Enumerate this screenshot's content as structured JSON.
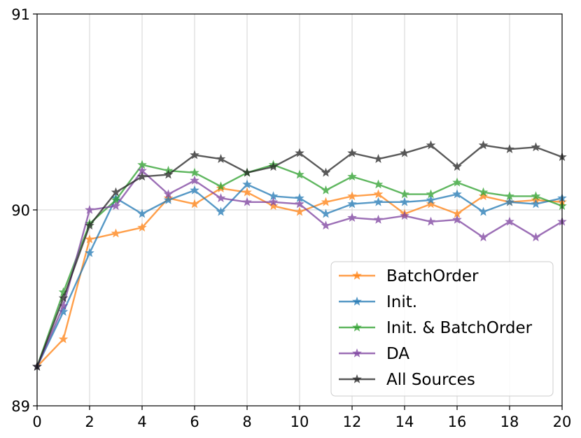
{
  "chart_data": {
    "type": "line",
    "title": "",
    "xlabel": "",
    "ylabel": "",
    "xlim": [
      0,
      20
    ],
    "ylim": [
      89,
      91
    ],
    "x_ticks": [
      0,
      2,
      4,
      6,
      8,
      10,
      12,
      14,
      16,
      18,
      20
    ],
    "y_ticks": [
      89,
      90,
      91
    ],
    "grid": "vertical",
    "legend_position": "lower-right",
    "marker": "star",
    "x": [
      0,
      1,
      2,
      3,
      4,
      5,
      6,
      7,
      8,
      9,
      10,
      11,
      12,
      13,
      14,
      15,
      16,
      17,
      18,
      19,
      20
    ],
    "series": [
      {
        "name": "BatchOrder",
        "color": "#ff7f0e",
        "values": [
          89.2,
          89.34,
          89.85,
          89.88,
          89.91,
          90.06,
          90.03,
          90.11,
          90.09,
          90.02,
          89.99,
          90.04,
          90.07,
          90.08,
          89.98,
          90.03,
          89.98,
          90.07,
          90.04,
          90.05,
          90.04
        ]
      },
      {
        "name": "Init.",
        "color": "#1f77b4",
        "values": [
          89.2,
          89.48,
          89.78,
          90.06,
          89.98,
          90.05,
          90.1,
          89.99,
          90.13,
          90.07,
          90.06,
          89.98,
          90.03,
          90.04,
          90.04,
          90.05,
          90.08,
          89.99,
          90.04,
          90.03,
          90.06
        ]
      },
      {
        "name": "Init. & BatchOrder",
        "color": "#2ca02c",
        "values": [
          89.2,
          89.58,
          89.93,
          90.05,
          90.23,
          90.2,
          90.19,
          90.12,
          90.19,
          90.23,
          90.18,
          90.1,
          90.17,
          90.13,
          90.08,
          90.08,
          90.14,
          90.09,
          90.07,
          90.07,
          90.02
        ]
      },
      {
        "name": "DA",
        "color": "#7b3f9e",
        "values": [
          89.2,
          89.51,
          90.0,
          90.02,
          90.2,
          90.08,
          90.15,
          90.06,
          90.04,
          90.04,
          90.03,
          89.92,
          89.96,
          89.95,
          89.97,
          89.94,
          89.95,
          89.86,
          89.94,
          89.86,
          89.94
        ]
      },
      {
        "name": "All Sources",
        "color": "#222222",
        "values": [
          89.2,
          89.55,
          89.92,
          90.09,
          90.17,
          90.18,
          90.28,
          90.26,
          90.19,
          90.22,
          90.29,
          90.19,
          90.29,
          90.26,
          90.29,
          90.33,
          90.22,
          90.33,
          90.31,
          90.32,
          90.27
        ]
      }
    ]
  }
}
